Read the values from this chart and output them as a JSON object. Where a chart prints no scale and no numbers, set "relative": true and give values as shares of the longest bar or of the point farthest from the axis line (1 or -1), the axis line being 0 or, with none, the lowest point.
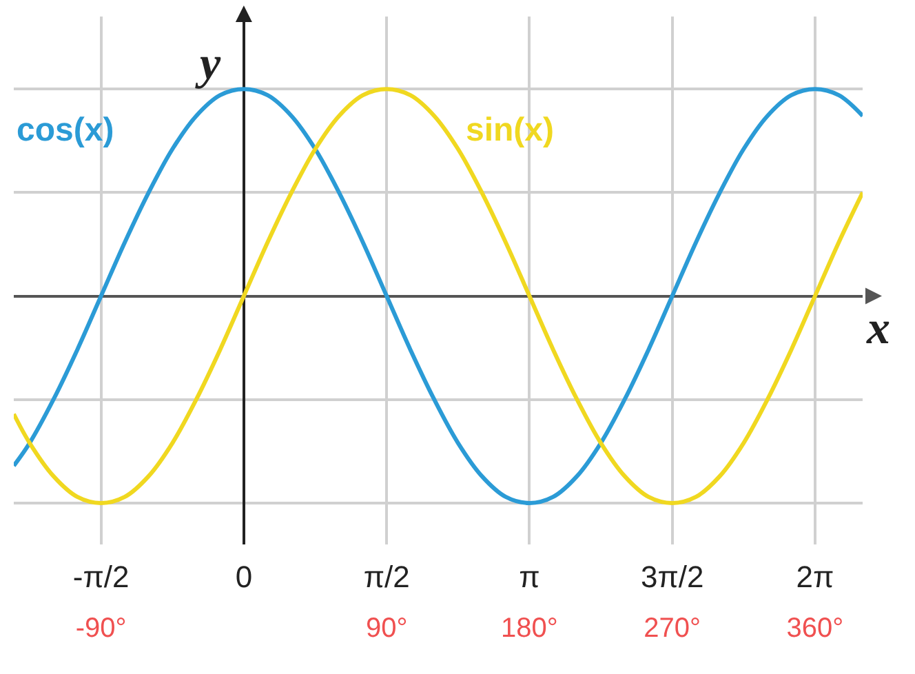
{
  "chart_data": {
    "type": "line",
    "relative": true,
    "xlabel": "x",
    "ylabel": "y",
    "x": [
      -145,
      -135,
      -120,
      -105,
      -90,
      -75,
      -60,
      -45,
      -30,
      -15,
      0,
      15,
      30,
      45,
      60,
      75,
      90,
      105,
      120,
      135,
      150,
      165,
      180,
      195,
      210,
      225,
      240,
      255,
      270,
      285,
      300,
      315,
      330,
      345,
      360,
      375,
      390
    ],
    "series": [
      {
        "name": "cos(x)",
        "color": "#2b9bd6",
        "values": [
          -0.82,
          -0.71,
          -0.5,
          -0.26,
          0,
          0.26,
          0.5,
          0.71,
          0.87,
          0.97,
          1,
          0.97,
          0.87,
          0.71,
          0.5,
          0.26,
          0,
          -0.26,
          -0.5,
          -0.71,
          -0.87,
          -0.97,
          -1,
          -0.97,
          -0.87,
          -0.71,
          -0.5,
          -0.26,
          0,
          0.26,
          0.5,
          0.71,
          0.87,
          0.97,
          1,
          0.97,
          0.87
        ]
      },
      {
        "name": "sin(x)",
        "color": "#f0d820",
        "values": [
          -0.57,
          -0.71,
          -0.87,
          -0.97,
          -1,
          -0.97,
          -0.87,
          -0.71,
          -0.5,
          -0.26,
          0,
          0.26,
          0.5,
          0.71,
          0.87,
          0.97,
          1,
          0.97,
          0.87,
          0.71,
          0.5,
          0.26,
          0,
          -0.26,
          -0.5,
          -0.71,
          -0.87,
          -0.97,
          -1,
          -0.97,
          -0.87,
          -0.71,
          -0.5,
          -0.26,
          0,
          0.26,
          0.5
        ]
      }
    ],
    "xlim": [
      -145,
      390
    ],
    "xticks": [
      {
        "value": -90,
        "label": "-90°"
      },
      {
        "value": 90,
        "label": "90°"
      },
      {
        "value": 180,
        "label": "180°"
      },
      {
        "value": 270,
        "label": "270°"
      },
      {
        "value": 360,
        "label": "360°"
      }
    ],
    "x2lim": [
      -2.5307,
      6.8068
    ],
    "x2ticks": [
      {
        "value": -1.5708,
        "label": "-π/2"
      },
      0,
      {
        "value": 1.5708,
        "label": "π/2"
      },
      {
        "value": 3.1416,
        "label": "π"
      },
      {
        "value": 4.7124,
        "label": "3π/2"
      },
      {
        "value": 6.2832,
        "label": "2π"
      }
    ],
    "grid": true,
    "legend": false,
    "marker": "none",
    "line_style": "solid"
  }
}
